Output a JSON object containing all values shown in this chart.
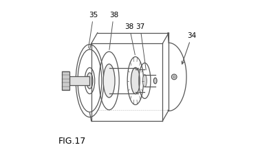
{
  "fig_label": "FIG.17",
  "background_color": "#ffffff",
  "line_color": "#555555",
  "figsize": [
    3.78,
    2.28
  ],
  "dpi": 100
}
